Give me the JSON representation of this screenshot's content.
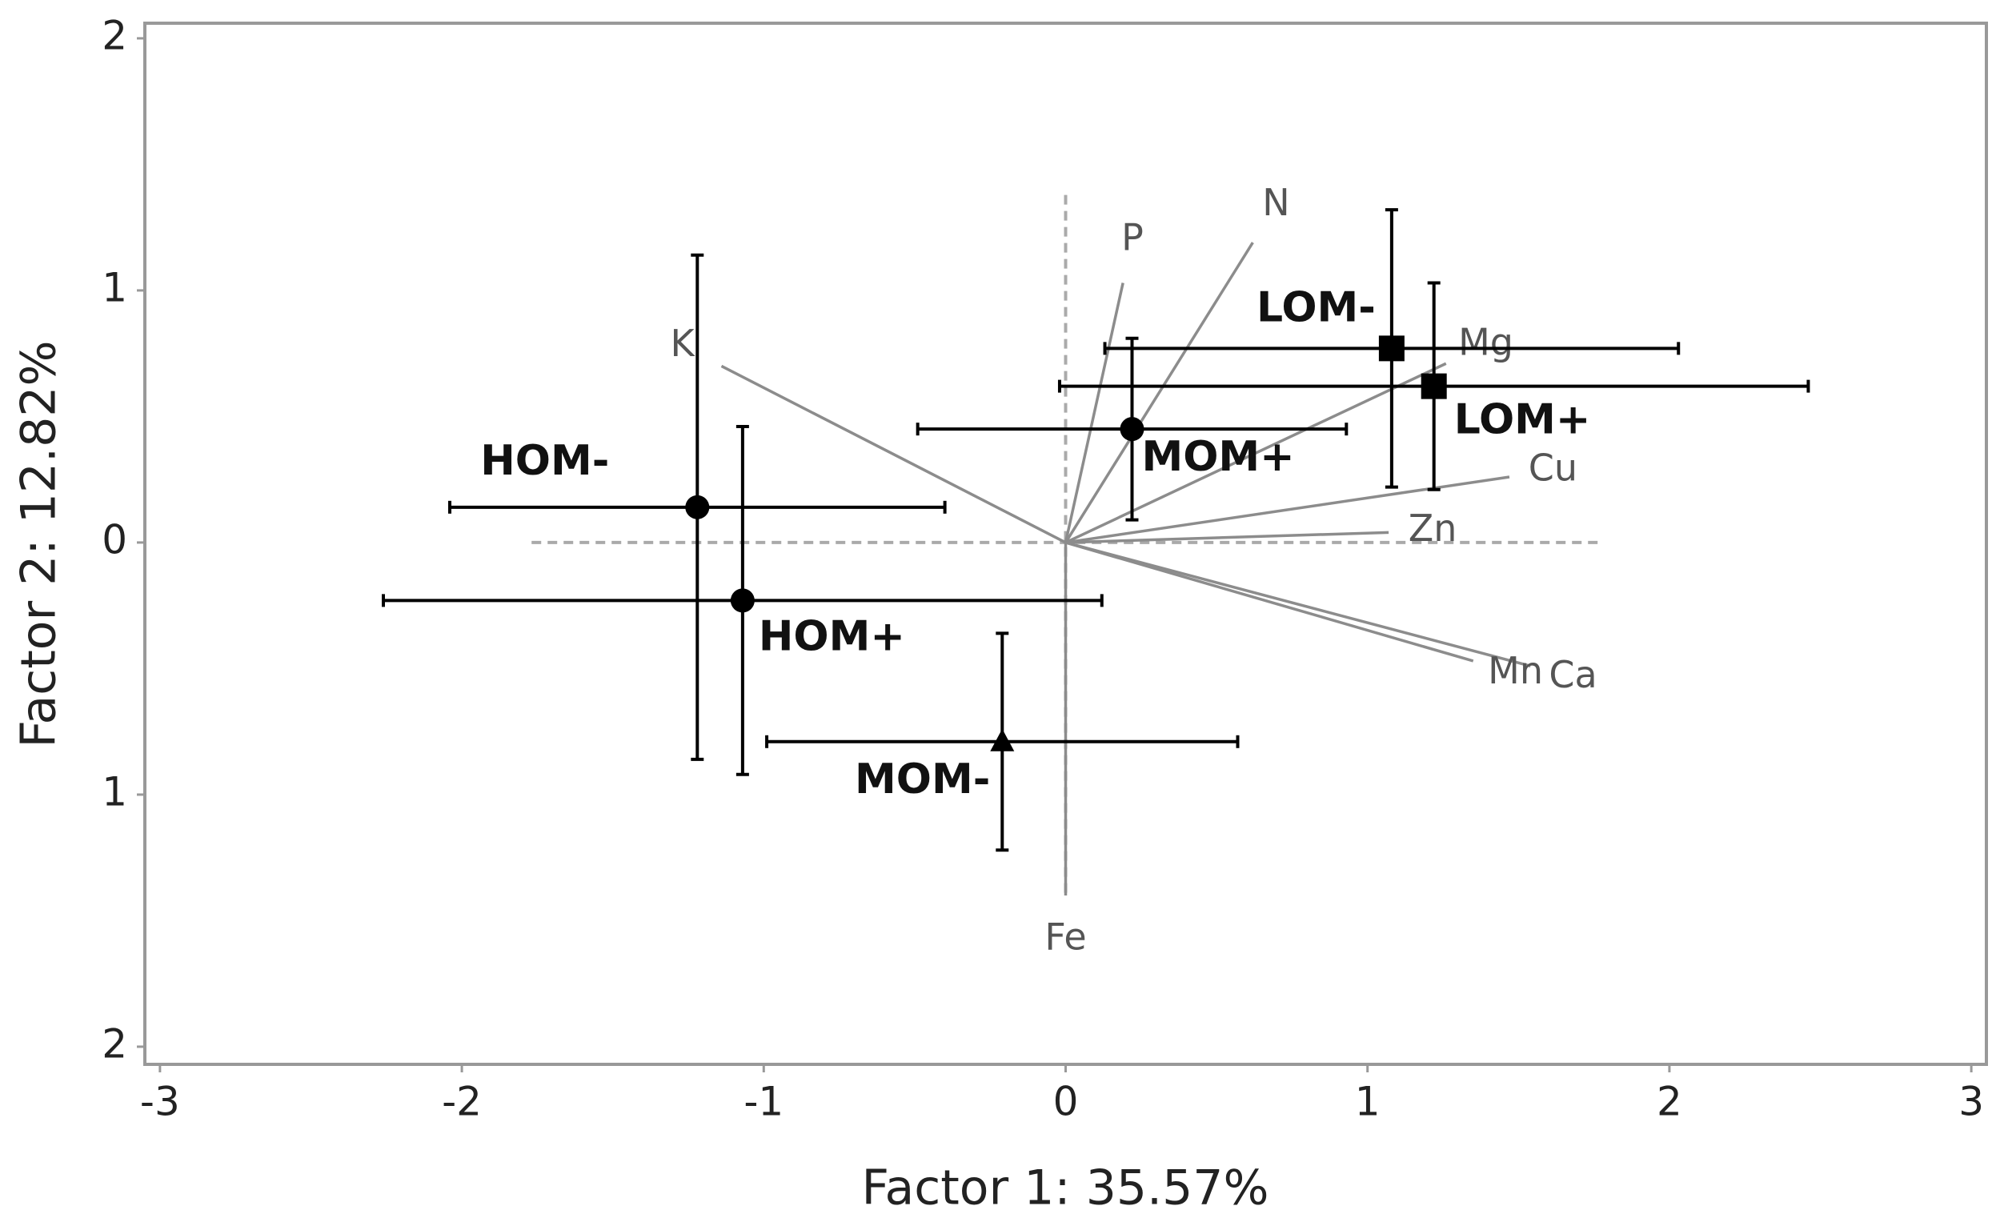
{
  "chart_data": {
    "type": "scatter",
    "x_label": "Factor 1: 35.57%",
    "y_label": "Factor 2: 12.82%",
    "xlim": [
      -3.05,
      3.05
    ],
    "ylim": [
      -2.07,
      2.06
    ],
    "xticks": [
      -3,
      -2,
      -1,
      0,
      1,
      2,
      3
    ],
    "yticks": [
      {
        "value": 2,
        "label": "2"
      },
      {
        "value": 1,
        "label": "1"
      },
      0,
      {
        "value": -1,
        "label": "1"
      },
      {
        "value": -2,
        "label": "2"
      }
    ],
    "series": [
      {
        "name": "HOM-",
        "marker": "circle",
        "color": "#000000",
        "x": [
          -1.22
        ],
        "values": [
          0.14
        ],
        "xerr": [
          0.82
        ],
        "yerr": [
          1.0
        ]
      },
      {
        "name": "HOM+",
        "marker": "circle",
        "color": "#000000",
        "x": [
          -1.07
        ],
        "values": [
          -0.23
        ],
        "xerr": [
          1.19
        ],
        "yerr": [
          0.69
        ]
      },
      {
        "name": "MOM-",
        "marker": "triangle",
        "color": "#000000",
        "x": [
          -0.21
        ],
        "values": [
          -0.79
        ],
        "xerr": [
          0.78
        ],
        "yerr": [
          0.43
        ]
      },
      {
        "name": "MOM+",
        "marker": "circle",
        "color": "#000000",
        "x": [
          0.22
        ],
        "values": [
          0.45
        ],
        "xerr": [
          0.71
        ],
        "yerr": [
          0.36
        ]
      },
      {
        "name": "LOM-",
        "marker": "square",
        "color": "#000000",
        "x": [
          1.08
        ],
        "values": [
          0.77
        ],
        "xerr": [
          0.95
        ],
        "yerr": [
          0.55
        ]
      },
      {
        "name": "LOM+",
        "marker": "square",
        "color": "#000000",
        "x": [
          1.22
        ],
        "values": [
          0.62
        ],
        "xerr": [
          1.24
        ],
        "yerr": [
          0.41
        ]
      }
    ],
    "vectors": {
      "color": "#8c8c8c",
      "names": [
        "K",
        "P",
        "N",
        "Mg",
        "Cu",
        "Zn",
        "Ca",
        "Mn",
        "Fe"
      ],
      "x": [
        -1.14,
        0.19,
        0.62,
        1.26,
        1.47,
        1.07,
        1.54,
        1.35,
        0
      ],
      "values": [
        0.7,
        1.03,
        1.19,
        0.71,
        0.26,
        0.04,
        -0.49,
        -0.47,
        -1.4
      ]
    }
  }
}
